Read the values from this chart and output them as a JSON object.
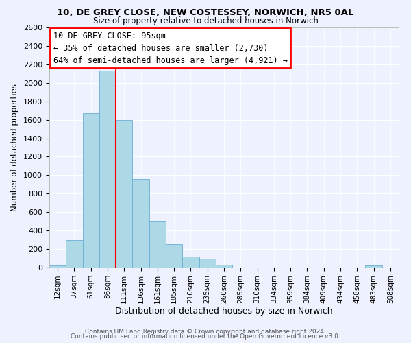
{
  "title1": "10, DE GREY CLOSE, NEW COSTESSEY, NORWICH, NR5 0AL",
  "title2": "Size of property relative to detached houses in Norwich",
  "xlabel": "Distribution of detached houses by size in Norwich",
  "ylabel": "Number of detached properties",
  "bin_labels": [
    "12sqm",
    "37sqm",
    "61sqm",
    "86sqm",
    "111sqm",
    "136sqm",
    "161sqm",
    "185sqm",
    "210sqm",
    "235sqm",
    "260sqm",
    "285sqm",
    "310sqm",
    "334sqm",
    "359sqm",
    "384sqm",
    "409sqm",
    "434sqm",
    "458sqm",
    "483sqm",
    "508sqm"
  ],
  "bar_values": [
    20,
    295,
    1670,
    2130,
    1600,
    960,
    505,
    250,
    120,
    95,
    30,
    0,
    0,
    0,
    0,
    0,
    0,
    0,
    0,
    20,
    0
  ],
  "bar_color": "#add8e6",
  "bar_edge_color": "#6baed6",
  "vline_color": "red",
  "vline_x": 3.5,
  "annotation_text_line1": "10 DE GREY CLOSE: 95sqm",
  "annotation_text_line2": "← 35% of detached houses are smaller (2,730)",
  "annotation_text_line3": "64% of semi-detached houses are larger (4,921) →",
  "ylim": [
    0,
    2600
  ],
  "yticks": [
    0,
    200,
    400,
    600,
    800,
    1000,
    1200,
    1400,
    1600,
    1800,
    2000,
    2200,
    2400,
    2600
  ],
  "footer1": "Contains HM Land Registry data © Crown copyright and database right 2024.",
  "footer2": "Contains public sector information licensed under the Open Government Licence v3.0.",
  "bg_color": "#eef2ff",
  "grid_color": "#ffffff",
  "title1_fontsize": 9.5,
  "title2_fontsize": 8.5,
  "xlabel_fontsize": 9,
  "ylabel_fontsize": 8.5,
  "tick_fontsize": 7.5,
  "ytick_fontsize": 8,
  "footer_fontsize": 6.5,
  "ann_fontsize": 8.5
}
